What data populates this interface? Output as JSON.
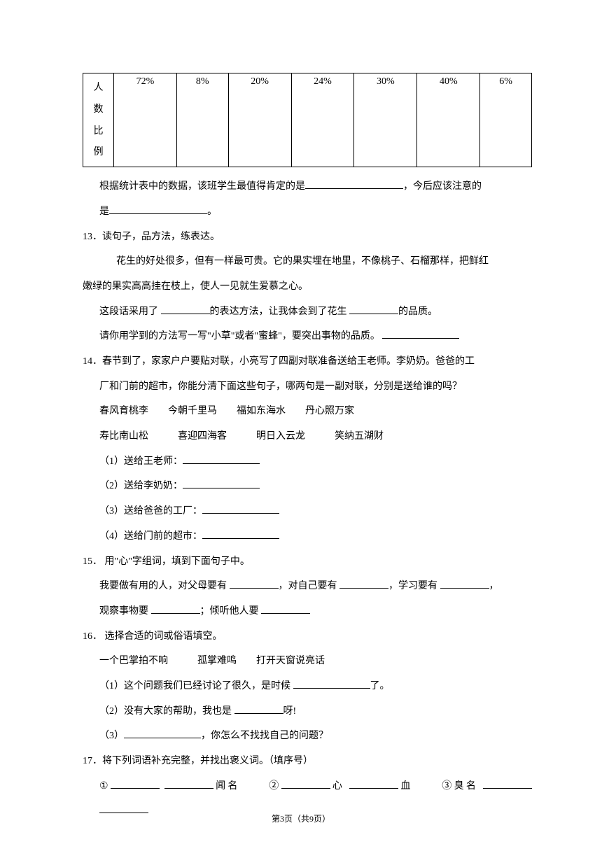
{
  "table": {
    "row_label_chars": [
      "人",
      "数",
      "比",
      "例"
    ],
    "values": [
      "72%",
      "8%",
      "20%",
      "24%",
      "30%",
      "40%",
      "6%"
    ]
  },
  "q12_tail": {
    "line1_a": "根据统计表中的数据，该班学生最值得肯定的是",
    "line1_b": "，今后应该注意的",
    "line2_a": "是",
    "line2_b": "。"
  },
  "q13": {
    "num": "13．",
    "title": "读句子，品方法，练表达。",
    "p1": "花生的好处很多，但有一样最可贵。它的果实埋在地里，不像桃子、石榴那样，把鲜红",
    "p2": "嫩绿的果实高高挂在枝上，使人一见就生爱慕之心。",
    "l1a": "这段话采用了 ",
    "l1b": "的表达方法，让我体会到了花生 ",
    "l1c": "的品质。",
    "l2a": "请你用学到的方法写一写\"小草\"或者\"蜜蜂\"，要突出事物的品质。 "
  },
  "q14": {
    "num": "14．",
    "l1": "春节到了，家家户户要贴对联，小亮写了四副对联准备送给王老师。李奶奶。爸爸的工",
    "l2": "厂和门前的超市，你能分清下面这些句子，哪两句是一副对联，分别是送给谁的吗？",
    "opts1": "春风育桃李　　今朝千里马　　福如东海水　　丹心照万家",
    "opts2": "寿比南山松　　　喜迎四海客　　　明日入云龙　　　笑纳五湖财",
    "a1": "（1）送给王老师：",
    "a2": "（2）送给李奶奶：",
    "a3": "（3）送给爸爸的工厂：",
    "a4": "（4）送给门前的超市："
  },
  "q15": {
    "num": "15．",
    "title": " 用\"心\"字组词，填到下面句子中。",
    "l1a": "我要做有用的人，对父母要有 ",
    "l1b": "，对自己要有 ",
    "l1c": "，学习要有 ",
    "l1d": "，",
    "l2a": "观察事物要 ",
    "l2b": "；倾听他人要 "
  },
  "q16": {
    "num": "16．",
    "title": " 选择合适的词或俗语填空。",
    "opts": "一个巴掌拍不响　　　孤掌难鸣　　打开天窗说亮话",
    "a1a": "（1）这个问题我们已经讨论了很久，是时候 ",
    "a1b": "了。",
    "a2a": "（2）没有大家的帮助，我也是 ",
    "a2b": "呀!",
    "a3a": "（3）",
    "a3b": "，你怎么不找找自己的问题？"
  },
  "q17": {
    "num": "17．",
    "title": "将下列词语补充完整，并找出褒义词。（填序号）",
    "c1": "①",
    "c1b": "闻名　　",
    "c2": "②",
    "c2a": "心 ",
    "c2b": "血　　",
    "c3": "③",
    "c3a": "臭名 "
  },
  "footer": {
    "a": "第",
    "page": "3",
    "b": "页",
    "c": "（共",
    "total": "9",
    "d": "页）"
  }
}
